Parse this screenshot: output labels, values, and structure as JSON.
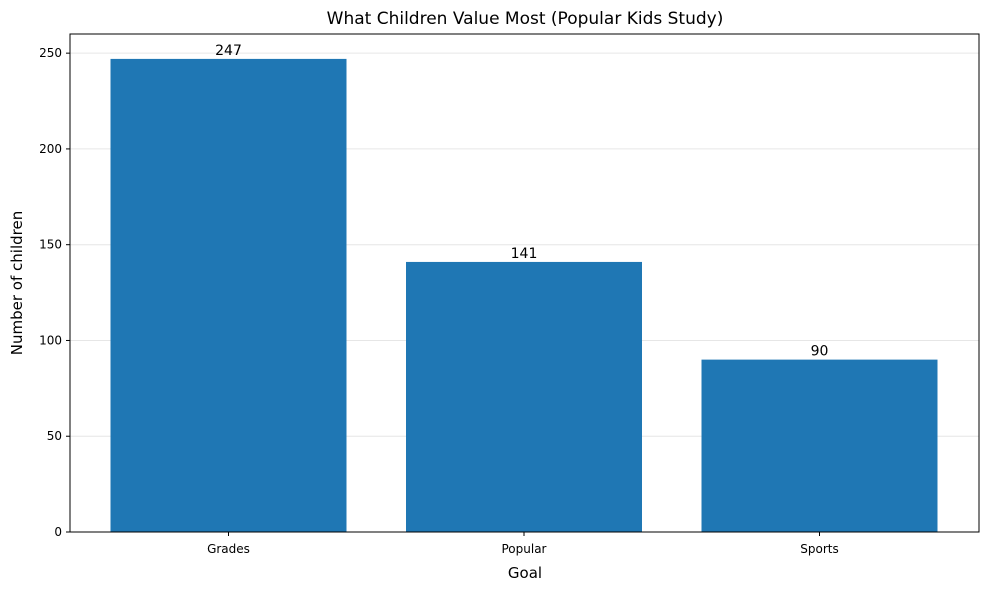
{
  "chart_data": {
    "type": "bar",
    "title": "What Children Value Most (Popular Kids Study)",
    "xlabel": "Goal",
    "ylabel": "Number of children",
    "categories": [
      "Grades",
      "Popular",
      "Sports"
    ],
    "values": [
      247,
      141,
      90
    ],
    "data_labels": [
      "247",
      "141",
      "90"
    ],
    "ylim": [
      0,
      260
    ],
    "yticks": [
      0,
      50,
      100,
      150,
      200,
      250
    ],
    "grid": "y-axis, light",
    "legend": "none",
    "bar_color": "#1f77b4"
  }
}
